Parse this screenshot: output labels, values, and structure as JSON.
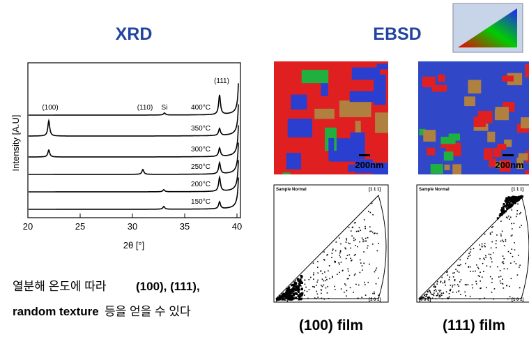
{
  "xrd": {
    "title": "XRD",
    "y_label": "Intensity [A.U]",
    "x_label": "2θ [°]",
    "x_ticks": [
      20,
      25,
      30,
      35,
      40
    ],
    "peak_labels": [
      "(100)",
      "(110)",
      "Si",
      "(111)"
    ],
    "curve_labels": [
      "400°C",
      "350°C",
      "300°C",
      "250°C",
      "200°C",
      "150°C"
    ]
  },
  "ebsd": {
    "title": "EBSD",
    "scale_bars": [
      "200nm",
      "200nm"
    ],
    "pole_figures": [
      {
        "header_left": "Sample Normal",
        "top": "[1 1 1]",
        "bottom_left": "[0 0 1]",
        "bottom_right": "[1 0 1]"
      },
      {
        "header_left": "Sample Normal",
        "top": "[1 1 1]",
        "bottom_left": "[0 0 1]",
        "bottom_right": "[1 0 1]"
      }
    ],
    "films": [
      "(100) film",
      "(111) film"
    ]
  },
  "caption": {
    "line1": [
      "열분해 온도에 따라",
      "(100), (111),"
    ],
    "line2": [
      "random texture",
      "등을 얻을 수 있다"
    ]
  }
}
